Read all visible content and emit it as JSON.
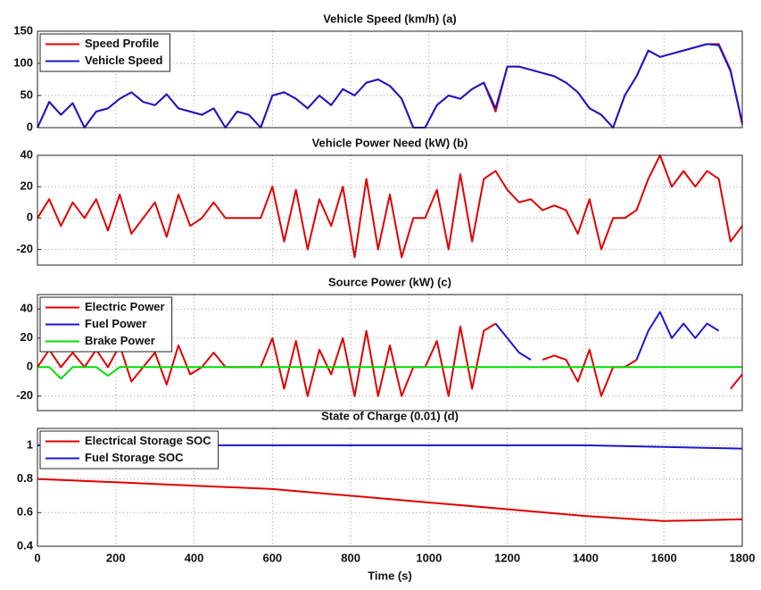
{
  "chart_data": [
    {
      "type": "line",
      "title": "Vehicle Speed (km/h) (a)",
      "x": [
        0,
        30,
        60,
        90,
        120,
        150,
        180,
        210,
        240,
        270,
        300,
        330,
        360,
        390,
        420,
        450,
        480,
        510,
        540,
        570,
        600,
        630,
        660,
        690,
        720,
        750,
        780,
        810,
        840,
        870,
        900,
        930,
        960,
        990,
        1020,
        1050,
        1080,
        1110,
        1140,
        1170,
        1200,
        1230,
        1260,
        1290,
        1320,
        1350,
        1380,
        1410,
        1440,
        1470,
        1500,
        1530,
        1560,
        1590,
        1620,
        1650,
        1680,
        1710,
        1740,
        1770,
        1800
      ],
      "series": [
        {
          "name": "Speed Profile",
          "color": "#e00000",
          "values": [
            0,
            40,
            20,
            38,
            0,
            25,
            30,
            45,
            55,
            40,
            35,
            52,
            30,
            25,
            20,
            30,
            0,
            25,
            20,
            0,
            50,
            55,
            45,
            30,
            50,
            35,
            60,
            50,
            70,
            75,
            65,
            45,
            0,
            0,
            35,
            50,
            45,
            60,
            70,
            25,
            95,
            95,
            90,
            85,
            80,
            70,
            55,
            30,
            20,
            0,
            50,
            80,
            120,
            110,
            115,
            120,
            125,
            130,
            130,
            90,
            5
          ]
        },
        {
          "name": "Vehicle Speed",
          "color": "#1a1ac8",
          "values": [
            0,
            40,
            20,
            38,
            0,
            25,
            30,
            45,
            55,
            40,
            35,
            52,
            30,
            25,
            20,
            30,
            0,
            25,
            20,
            0,
            50,
            55,
            45,
            30,
            50,
            35,
            60,
            50,
            70,
            75,
            65,
            45,
            0,
            0,
            35,
            50,
            45,
            60,
            70,
            30,
            95,
            95,
            90,
            85,
            80,
            70,
            55,
            30,
            20,
            0,
            50,
            80,
            120,
            110,
            115,
            120,
            125,
            130,
            128,
            88,
            8
          ]
        }
      ],
      "xlim": [
        0,
        1800
      ],
      "ylim": [
        0,
        150
      ],
      "yticks": [
        0,
        50,
        100,
        150
      ],
      "grid": true,
      "legend": "upper left"
    },
    {
      "type": "line",
      "title": "Vehicle Power Need (kW) (b)",
      "x": [
        0,
        30,
        60,
        90,
        120,
        150,
        180,
        210,
        240,
        270,
        300,
        330,
        360,
        390,
        420,
        450,
        480,
        510,
        540,
        570,
        600,
        630,
        660,
        690,
        720,
        750,
        780,
        810,
        840,
        870,
        900,
        930,
        960,
        990,
        1020,
        1050,
        1080,
        1110,
        1140,
        1170,
        1200,
        1230,
        1260,
        1290,
        1320,
        1350,
        1380,
        1410,
        1440,
        1470,
        1500,
        1530,
        1560,
        1590,
        1620,
        1650,
        1680,
        1710,
        1740,
        1770,
        1800
      ],
      "series": [
        {
          "name": null,
          "color": "#e00000",
          "values": [
            0,
            12,
            -5,
            10,
            0,
            12,
            -8,
            15,
            -10,
            0,
            10,
            -12,
            15,
            -5,
            0,
            10,
            0,
            0,
            0,
            0,
            20,
            -15,
            18,
            -20,
            12,
            -5,
            20,
            -25,
            25,
            -20,
            15,
            -25,
            0,
            0,
            18,
            -20,
            28,
            -15,
            25,
            30,
            18,
            10,
            12,
            5,
            8,
            5,
            -10,
            12,
            -20,
            0,
            0,
            5,
            25,
            40,
            20,
            30,
            20,
            30,
            25,
            -15,
            -5
          ]
        }
      ],
      "xlim": [
        0,
        1800
      ],
      "ylim": [
        -30,
        40
      ],
      "yticks": [
        -20,
        0,
        20,
        40
      ],
      "grid": true
    },
    {
      "type": "line",
      "title": "Source Power (kW) (c)",
      "x": [
        0,
        30,
        60,
        90,
        120,
        150,
        180,
        210,
        240,
        270,
        300,
        330,
        360,
        390,
        420,
        450,
        480,
        510,
        540,
        570,
        600,
        630,
        660,
        690,
        720,
        750,
        780,
        810,
        840,
        870,
        900,
        930,
        960,
        990,
        1020,
        1050,
        1080,
        1110,
        1140,
        1170,
        1200,
        1230,
        1260,
        1290,
        1320,
        1350,
        1380,
        1410,
        1440,
        1470,
        1500,
        1530,
        1560,
        1590,
        1620,
        1650,
        1680,
        1710,
        1740,
        1770,
        1800
      ],
      "series": [
        {
          "name": "Electric Power",
          "color": "#e00000",
          "values": [
            0,
            12,
            0,
            10,
            0,
            12,
            0,
            15,
            -10,
            0,
            10,
            -12,
            15,
            -5,
            0,
            10,
            0,
            0,
            0,
            0,
            20,
            -15,
            18,
            -20,
            12,
            -5,
            20,
            -20,
            25,
            -20,
            15,
            -20,
            0,
            0,
            18,
            -20,
            28,
            -15,
            25,
            30,
            null,
            null,
            null,
            5,
            8,
            5,
            -10,
            12,
            -20,
            0,
            0,
            5,
            null,
            null,
            null,
            null,
            null,
            null,
            null,
            -15,
            -5
          ]
        },
        {
          "name": "Fuel Power",
          "color": "#1a1ac8",
          "values": [
            null,
            null,
            null,
            null,
            null,
            null,
            null,
            null,
            null,
            null,
            null,
            null,
            null,
            null,
            null,
            null,
            null,
            null,
            null,
            null,
            null,
            null,
            null,
            null,
            null,
            null,
            null,
            null,
            null,
            null,
            null,
            null,
            null,
            null,
            null,
            null,
            null,
            null,
            null,
            30,
            20,
            10,
            5,
            null,
            null,
            null,
            null,
            null,
            null,
            null,
            null,
            5,
            25,
            38,
            20,
            30,
            20,
            30,
            25,
            null,
            null
          ]
        },
        {
          "name": "Brake Power",
          "color": "#00dd00",
          "values": [
            0,
            0,
            -8,
            0,
            0,
            0,
            -6,
            0,
            0,
            0,
            0,
            0,
            0,
            0,
            0,
            0,
            0,
            0,
            0,
            0,
            0,
            0,
            0,
            0,
            0,
            0,
            0,
            0,
            0,
            0,
            0,
            0,
            0,
            0,
            0,
            0,
            0,
            0,
            0,
            0,
            0,
            0,
            0,
            0,
            0,
            0,
            0,
            0,
            0,
            0,
            0,
            0,
            0,
            0,
            0,
            0,
            0,
            0,
            0,
            0,
            0
          ]
        }
      ],
      "xlim": [
        0,
        1800
      ],
      "ylim": [
        -30,
        50
      ],
      "yticks": [
        -20,
        0,
        20,
        40
      ],
      "grid": true,
      "legend": "upper left"
    },
    {
      "type": "line",
      "title": "State of Charge (0.01) (d)",
      "x_label": "Time (s)",
      "x": [
        0,
        200,
        400,
        600,
        800,
        1000,
        1200,
        1400,
        1600,
        1800
      ],
      "series": [
        {
          "name": "Electrical Storage SOC",
          "color": "#e00000",
          "values": [
            0.8,
            0.78,
            0.76,
            0.74,
            0.7,
            0.66,
            0.62,
            0.58,
            0.55,
            0.56
          ]
        },
        {
          "name": "Fuel Storage SOC",
          "color": "#1a1ac8",
          "values": [
            1,
            1,
            1,
            1,
            1,
            1,
            1,
            1,
            0.99,
            0.98
          ]
        }
      ],
      "xlim": [
        0,
        1800
      ],
      "xticks": [
        0,
        200,
        400,
        600,
        800,
        1000,
        1200,
        1400,
        1600,
        1800
      ],
      "ylim": [
        0.4,
        1.1
      ],
      "yticks": [
        0.4,
        0.6,
        0.8,
        1
      ],
      "grid": true,
      "legend": "upper left"
    }
  ]
}
